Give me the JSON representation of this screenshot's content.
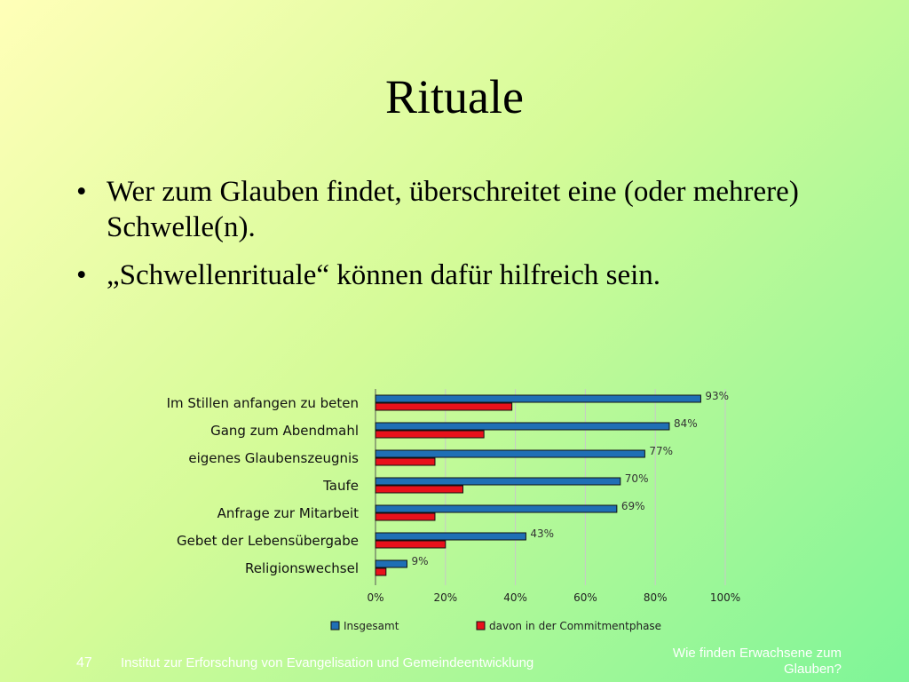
{
  "slide": {
    "title": "Rituale",
    "bullets": [
      {
        "marker": "•",
        "text": "Wer zum Glauben findet, überschreitet eine (oder mehrere) Schwelle(n)."
      },
      {
        "marker": "•",
        "text": "„Schwellenrituale“ können dafür hilfreich sein."
      }
    ]
  },
  "chart_data": {
    "type": "bar",
    "orientation": "horizontal",
    "categories": [
      "Im Stillen anfangen zu beten",
      "Gang zum Abendmahl",
      "eigenes Glaubenszeugnis",
      "Taufe",
      "Anfrage zur Mitarbeit",
      "Gebet der Lebensübergabe",
      "Religionswechsel"
    ],
    "series": [
      {
        "name": "Insgesamt",
        "values": [
          93,
          84,
          77,
          70,
          69,
          43,
          9
        ],
        "color": "#1f6fb5",
        "data_labels": [
          "93%",
          "84%",
          "77%",
          "70%",
          "69%",
          "43%",
          "9%"
        ]
      },
      {
        "name": "davon in der Commitmentphase",
        "values": [
          39,
          31,
          17,
          25,
          17,
          20,
          3
        ],
        "color": "#e8111b"
      }
    ],
    "xlim": [
      0,
      100
    ],
    "ticks": [
      "0%",
      "20%",
      "40%",
      "60%",
      "80%",
      "100%"
    ],
    "grid": true,
    "legend_position": "bottom"
  },
  "footer": {
    "slide_number": "47",
    "institute": "Institut zur Erforschung von Evangelisation und Gemeindeentwicklung",
    "title_line1": "Wie finden Erwachsene zum",
    "title_line2": "Glauben?"
  }
}
